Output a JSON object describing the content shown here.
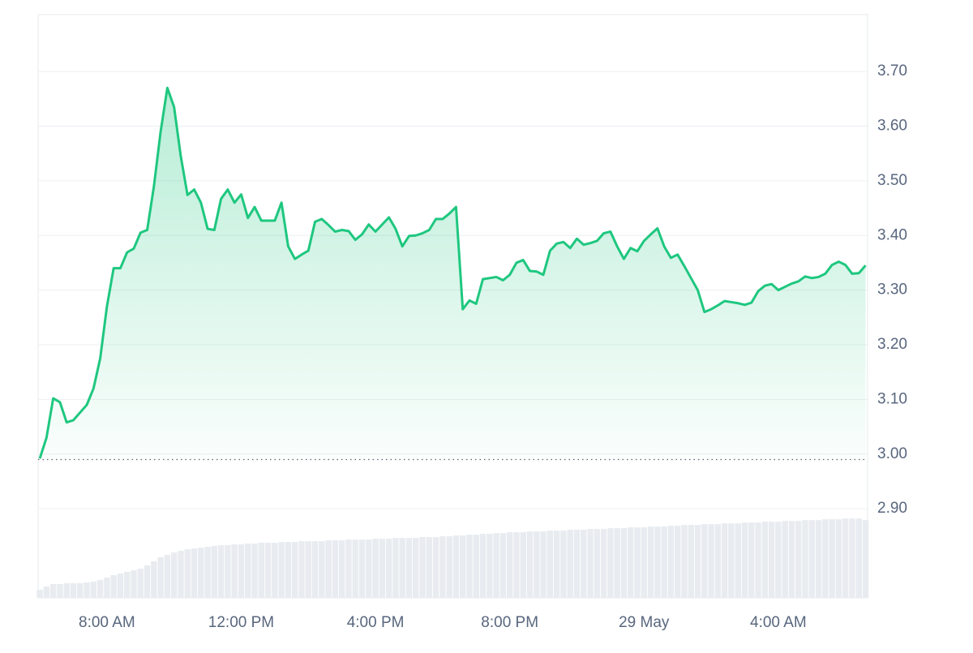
{
  "chart_data": {
    "type": "line",
    "color": "#1ec77f",
    "area_color": "#1ec77f",
    "volume_color": "#e8ecf0",
    "grid": true,
    "xlim": [
      5.95,
      30.66
    ],
    "ylim": [
      2.737,
      3.804
    ],
    "y2lim": [
      0,
      720
    ],
    "reference_line": 2.99,
    "yticks": [
      {
        "value": 2.9,
        "label": "2.90"
      },
      {
        "value": 3.0,
        "label": "3.00"
      },
      {
        "value": 3.1,
        "label": "3.10"
      },
      {
        "value": 3.2,
        "label": "3.20"
      },
      {
        "value": 3.3,
        "label": "3.30"
      },
      {
        "value": 3.4,
        "label": "3.40"
      },
      {
        "value": 3.5,
        "label": "3.50"
      },
      {
        "value": 3.6,
        "label": "3.60"
      },
      {
        "value": 3.7,
        "label": "3.70"
      }
    ],
    "xticks": [
      {
        "value": 8,
        "label": "8:00 AM"
      },
      {
        "value": 12,
        "label": "12:00 PM"
      },
      {
        "value": 16,
        "label": "4:00 PM"
      },
      {
        "value": 20,
        "label": "8:00 PM"
      },
      {
        "value": 24,
        "label": "29 May"
      },
      {
        "value": 28,
        "label": "4:00 AM"
      }
    ],
    "x": [
      6.0,
      6.2,
      6.4,
      6.6,
      6.8,
      7.0,
      7.2,
      7.4,
      7.6,
      7.8,
      8.0,
      8.2,
      8.4,
      8.6,
      8.8,
      9.0,
      9.2,
      9.4,
      9.6,
      9.8,
      10.0,
      10.2,
      10.4,
      10.6,
      10.8,
      11.0,
      11.2,
      11.4,
      11.6,
      11.8,
      12.0,
      12.2,
      12.4,
      12.6,
      12.8,
      13.0,
      13.2,
      13.4,
      13.6,
      13.8,
      14.0,
      14.2,
      14.4,
      14.6,
      14.8,
      15.0,
      15.2,
      15.4,
      15.6,
      15.8,
      16.0,
      16.2,
      16.4,
      16.6,
      16.8,
      17.0,
      17.2,
      17.4,
      17.6,
      17.8,
      18.0,
      18.2,
      18.4,
      18.6,
      18.8,
      19.0,
      19.2,
      19.4,
      19.6,
      19.8,
      20.0,
      20.2,
      20.4,
      20.6,
      20.8,
      21.0,
      21.2,
      21.4,
      21.6,
      21.8,
      22.0,
      22.2,
      22.4,
      22.6,
      22.8,
      23.0,
      23.2,
      23.4,
      23.6,
      23.8,
      24.0,
      24.2,
      24.4,
      24.6,
      24.8,
      25.0,
      25.2,
      25.4,
      25.6,
      25.8,
      26.0,
      26.2,
      26.4,
      26.6,
      26.8,
      27.0,
      27.2,
      27.4,
      27.6,
      27.8,
      28.0,
      28.2,
      28.4,
      28.6,
      28.8,
      29.0,
      29.2,
      29.4,
      29.6,
      29.8,
      30.0,
      30.2,
      30.4,
      30.6
    ],
    "values": [
      2.992,
      3.03,
      3.102,
      3.095,
      3.058,
      3.062,
      3.076,
      3.09,
      3.12,
      3.175,
      3.27,
      3.34,
      3.34,
      3.369,
      3.376,
      3.405,
      3.41,
      3.49,
      3.59,
      3.67,
      3.635,
      3.545,
      3.474,
      3.484,
      3.46,
      3.412,
      3.41,
      3.467,
      3.484,
      3.46,
      3.475,
      3.432,
      3.452,
      3.427,
      3.427,
      3.427,
      3.46,
      3.38,
      3.357,
      3.365,
      3.372,
      3.425,
      3.43,
      3.419,
      3.407,
      3.41,
      3.408,
      3.392,
      3.402,
      3.42,
      3.407,
      3.42,
      3.433,
      3.412,
      3.38,
      3.399,
      3.4,
      3.404,
      3.41,
      3.43,
      3.43,
      3.44,
      3.452,
      3.265,
      3.281,
      3.275,
      3.32,
      3.322,
      3.324,
      3.318,
      3.328,
      3.35,
      3.355,
      3.335,
      3.334,
      3.328,
      3.372,
      3.385,
      3.388,
      3.377,
      3.394,
      3.383,
      3.386,
      3.39,
      3.404,
      3.407,
      3.38,
      3.357,
      3.377,
      3.371,
      3.39,
      3.402,
      3.413,
      3.38,
      3.359,
      3.365,
      3.344,
      3.322,
      3.3,
      3.26,
      3.265,
      3.272,
      3.28,
      3.278,
      3.276,
      3.273,
      3.277,
      3.298,
      3.308,
      3.311,
      3.3,
      3.306,
      3.312,
      3.316,
      3.325,
      3.322,
      3.324,
      3.33,
      3.346,
      3.352,
      3.346,
      3.33,
      3.331,
      3.345
    ],
    "volume_values": [
      10,
      14,
      17,
      17,
      18,
      18,
      18,
      19,
      20,
      22,
      25,
      28,
      30,
      32,
      34,
      36,
      40,
      45,
      50,
      53,
      56,
      58,
      60,
      61,
      62,
      63,
      64,
      65,
      65,
      66,
      66,
      67,
      67,
      68,
      68,
      68,
      69,
      69,
      69,
      70,
      70,
      70,
      70,
      71,
      71,
      71,
      72,
      72,
      72,
      72,
      73,
      73,
      73,
      74,
      74,
      74,
      74,
      75,
      75,
      75,
      76,
      76,
      77,
      77,
      78,
      78,
      79,
      79,
      80,
      80,
      81,
      81,
      81,
      82,
      82,
      82,
      83,
      83,
      83,
      84,
      84,
      84,
      85,
      85,
      85,
      86,
      86,
      86,
      87,
      87,
      87,
      88,
      88,
      88,
      89,
      89,
      90,
      90,
      90,
      91,
      91,
      91,
      92,
      92,
      92,
      93,
      93,
      93,
      94,
      94,
      94,
      95,
      95,
      95,
      96,
      96,
      96,
      97,
      97,
      97,
      98,
      98,
      98,
      96
    ]
  }
}
